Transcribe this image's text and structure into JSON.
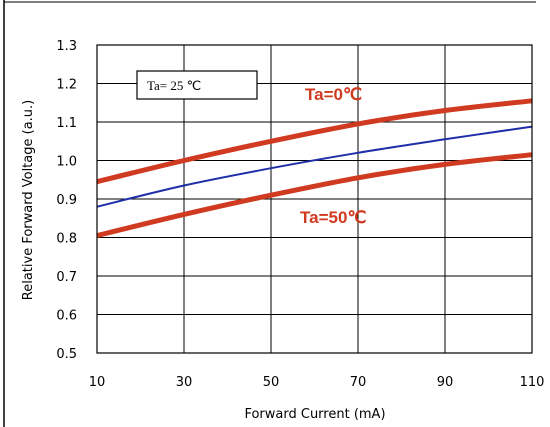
{
  "chart_data": {
    "type": "line",
    "title": "",
    "xlabel": "Forward Current (mA)",
    "ylabel": "Relative Forward Voltage (a.u.)",
    "xlim": [
      10,
      110
    ],
    "ylim": [
      0.5,
      1.3
    ],
    "xticks": [
      10,
      30,
      50,
      70,
      90,
      110
    ],
    "yticks": [
      0.5,
      0.6,
      0.7,
      0.8,
      0.9,
      1.0,
      1.1,
      1.2,
      1.3
    ],
    "ytick_labels": [
      "0.5",
      "0.6",
      "0.7",
      "0.8",
      "0.9",
      "1.0",
      "1.1",
      "1.2",
      "1.3"
    ],
    "grid": true,
    "series": [
      {
        "name": "Ta=0℃",
        "color": "#d03a20",
        "x": [
          10,
          30,
          50,
          70,
          90,
          110
        ],
        "y": [
          0.945,
          1.0,
          1.05,
          1.095,
          1.13,
          1.155
        ]
      },
      {
        "name": "Ta= 25 ℃",
        "color": "#1f2fa8",
        "x": [
          10,
          30,
          50,
          70,
          90,
          110
        ],
        "y": [
          0.88,
          0.935,
          0.98,
          1.02,
          1.055,
          1.088
        ]
      },
      {
        "name": "Ta=50℃",
        "color": "#d03a20",
        "x": [
          10,
          30,
          50,
          70,
          90,
          110
        ],
        "y": [
          0.805,
          0.86,
          0.91,
          0.955,
          0.99,
          1.015
        ]
      }
    ],
    "annotations": {
      "box_label": "Ta= 25 ℃",
      "top_label": "Ta=0℃",
      "bottom_label": "Ta=50℃"
    }
  }
}
